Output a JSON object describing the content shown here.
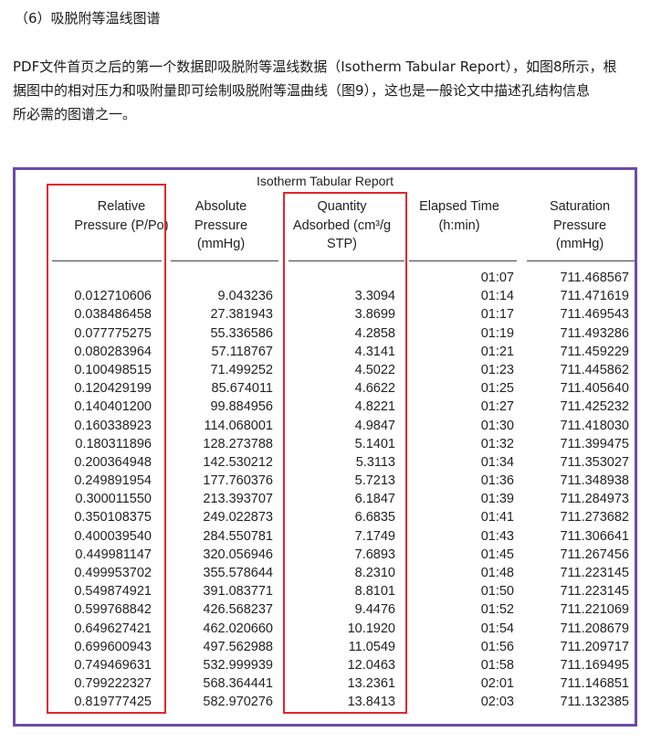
{
  "section_heading": "（6）吸脱附等温线图谱",
  "paragraph": {
    "line1": "PDF文件首页之后的第一个数据即吸脱附等温线数据（Isotherm Tabular Report），如图8所示，根",
    "line2": "据图中的相对压力和吸附量即可绘制吸脱附等温曲线（图9），这也是一般论文中描述孔结构信息",
    "line3": "所必需的图谱之一。"
  },
  "report": {
    "title": "Isotherm Tabular Report",
    "headers": {
      "relative_pressure": [
        "Relative",
        "Pressure (P/Po)"
      ],
      "absolute_pressure": [
        "Absolute",
        "Pressure",
        "(mmHg)"
      ],
      "quantity_adsorbed": [
        "Quantity",
        "Adsorbed (cm³/g",
        "STP)"
      ],
      "elapsed_time": [
        "Elapsed Time",
        "(h:min)"
      ],
      "saturation_pressure": [
        "Saturation",
        "Pressure",
        "(mmHg)"
      ]
    },
    "relative_pressure": [
      "",
      "0.012710606",
      "0.038486458",
      "0.077775275",
      "0.080283964",
      "0.100498515",
      "0.120429199",
      "0.140401200",
      "0.160338923",
      "0.180311896",
      "0.200364948",
      "0.249891954",
      "0.300011550",
      "0.350108375",
      "0.400039540",
      "0.449981147",
      "0.499953702",
      "0.549874921",
      "0.599768842",
      "0.649627421",
      "0.699600943",
      "0.749469631",
      "0.799222327",
      "0.819777425"
    ],
    "absolute_pressure": [
      "",
      "9.043236",
      "27.381943",
      "55.336586",
      "57.118767",
      "71.499252",
      "85.674011",
      "99.884956",
      "114.068001",
      "128.273788",
      "142.530212",
      "177.760376",
      "213.393707",
      "249.022873",
      "284.550781",
      "320.056946",
      "355.578644",
      "391.083771",
      "426.568237",
      "462.020660",
      "497.562988",
      "532.999939",
      "568.364441",
      "582.970276"
    ],
    "quantity_adsorbed": [
      "",
      "3.3094",
      "3.8699",
      "4.2858",
      "4.3141",
      "4.5022",
      "4.6622",
      "4.8221",
      "4.9847",
      "5.1401",
      "5.3113",
      "5.7213",
      "6.1847",
      "6.6835",
      "7.1749",
      "7.6893",
      "8.2310",
      "8.8101",
      "9.4476",
      "10.1920",
      "11.0549",
      "12.0463",
      "13.2361",
      "13.8413"
    ],
    "elapsed_time": [
      "01:07",
      "01:14",
      "01:17",
      "01:19",
      "01:21",
      "01:23",
      "01:25",
      "01:27",
      "01:30",
      "01:32",
      "01:34",
      "01:36",
      "01:39",
      "01:41",
      "01:43",
      "01:45",
      "01:48",
      "01:50",
      "01:52",
      "01:54",
      "01:56",
      "01:58",
      "02:01",
      "02:03"
    ],
    "saturation_pressure": [
      "711.468567",
      "711.471619",
      "711.469543",
      "711.493286",
      "711.459229",
      "711.445862",
      "711.405640",
      "711.425232",
      "711.418030",
      "711.399475",
      "711.353027",
      "711.348938",
      "711.284973",
      "711.273682",
      "711.306641",
      "711.267456",
      "711.223145",
      "711.223145",
      "711.221069",
      "711.208679",
      "711.209717",
      "711.169495",
      "711.146851",
      "711.132385"
    ]
  },
  "colors": {
    "frame": "#6f4aa8",
    "highlight": "#e2262d"
  }
}
